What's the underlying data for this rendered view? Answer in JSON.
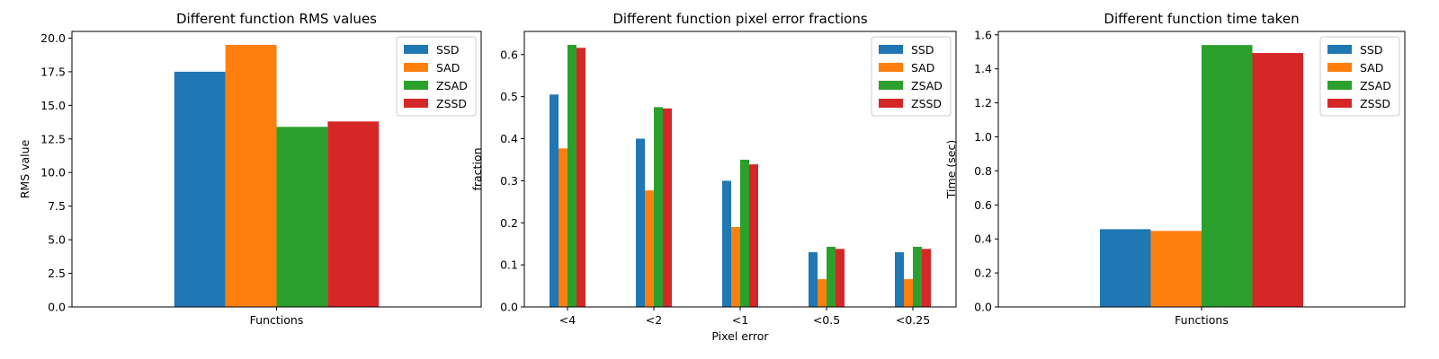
{
  "chart_data": [
    {
      "type": "bar",
      "title": "Different function RMS values",
      "xlabel": "",
      "ylabel": "RMS value",
      "categories": [
        "Functions"
      ],
      "series": [
        {
          "name": "SSD",
          "values": [
            17.5
          ],
          "color": "#1f77b4"
        },
        {
          "name": "SAD",
          "values": [
            19.5
          ],
          "color": "#ff7f0e"
        },
        {
          "name": "ZSAD",
          "values": [
            13.4
          ],
          "color": "#2ca02c"
        },
        {
          "name": "ZSSD",
          "values": [
            13.8
          ],
          "color": "#d62728"
        }
      ],
      "ylim": [
        0,
        20.5
      ],
      "yticks": [
        "0.0",
        "2.5",
        "5.0",
        "7.5",
        "10.0",
        "12.5",
        "15.0",
        "17.5",
        "20.0"
      ],
      "legend": "top-right",
      "grid": false
    },
    {
      "type": "bar",
      "title": "Different function pixel error fractions",
      "xlabel": "Pixel error",
      "ylabel": "fraction",
      "categories": [
        "<4",
        "<2",
        "<1",
        "<0.5",
        "<0.25"
      ],
      "series": [
        {
          "name": "SSD",
          "values": [
            0.505,
            0.4,
            0.3,
            0.13,
            0.13
          ],
          "color": "#1f77b4"
        },
        {
          "name": "SAD",
          "values": [
            0.377,
            0.277,
            0.19,
            0.066,
            0.066
          ],
          "color": "#ff7f0e"
        },
        {
          "name": "ZSAD",
          "values": [
            0.623,
            0.475,
            0.35,
            0.143,
            0.143
          ],
          "color": "#2ca02c"
        },
        {
          "name": "ZSSD",
          "values": [
            0.616,
            0.472,
            0.339,
            0.138,
            0.138
          ],
          "color": "#d62728"
        }
      ],
      "ylim": [
        0,
        0.655
      ],
      "yticks": [
        "0.0",
        "0.1",
        "0.2",
        "0.3",
        "0.4",
        "0.5",
        "0.6"
      ],
      "legend": "top-right",
      "grid": false
    },
    {
      "type": "bar",
      "title": "Different function time taken",
      "xlabel": "",
      "ylabel": "Time (sec)",
      "categories": [
        "Functions"
      ],
      "series": [
        {
          "name": "SSD",
          "values": [
            0.457
          ],
          "color": "#1f77b4"
        },
        {
          "name": "SAD",
          "values": [
            0.447
          ],
          "color": "#ff7f0e"
        },
        {
          "name": "ZSAD",
          "values": [
            1.54
          ],
          "color": "#2ca02c"
        },
        {
          "name": "ZSSD",
          "values": [
            1.493
          ],
          "color": "#d62728"
        }
      ],
      "ylim": [
        0,
        1.62
      ],
      "yticks": [
        "0.0",
        "0.2",
        "0.4",
        "0.6",
        "0.8",
        "1.0",
        "1.2",
        "1.4",
        "1.6"
      ],
      "legend": "top-right",
      "grid": false
    }
  ]
}
